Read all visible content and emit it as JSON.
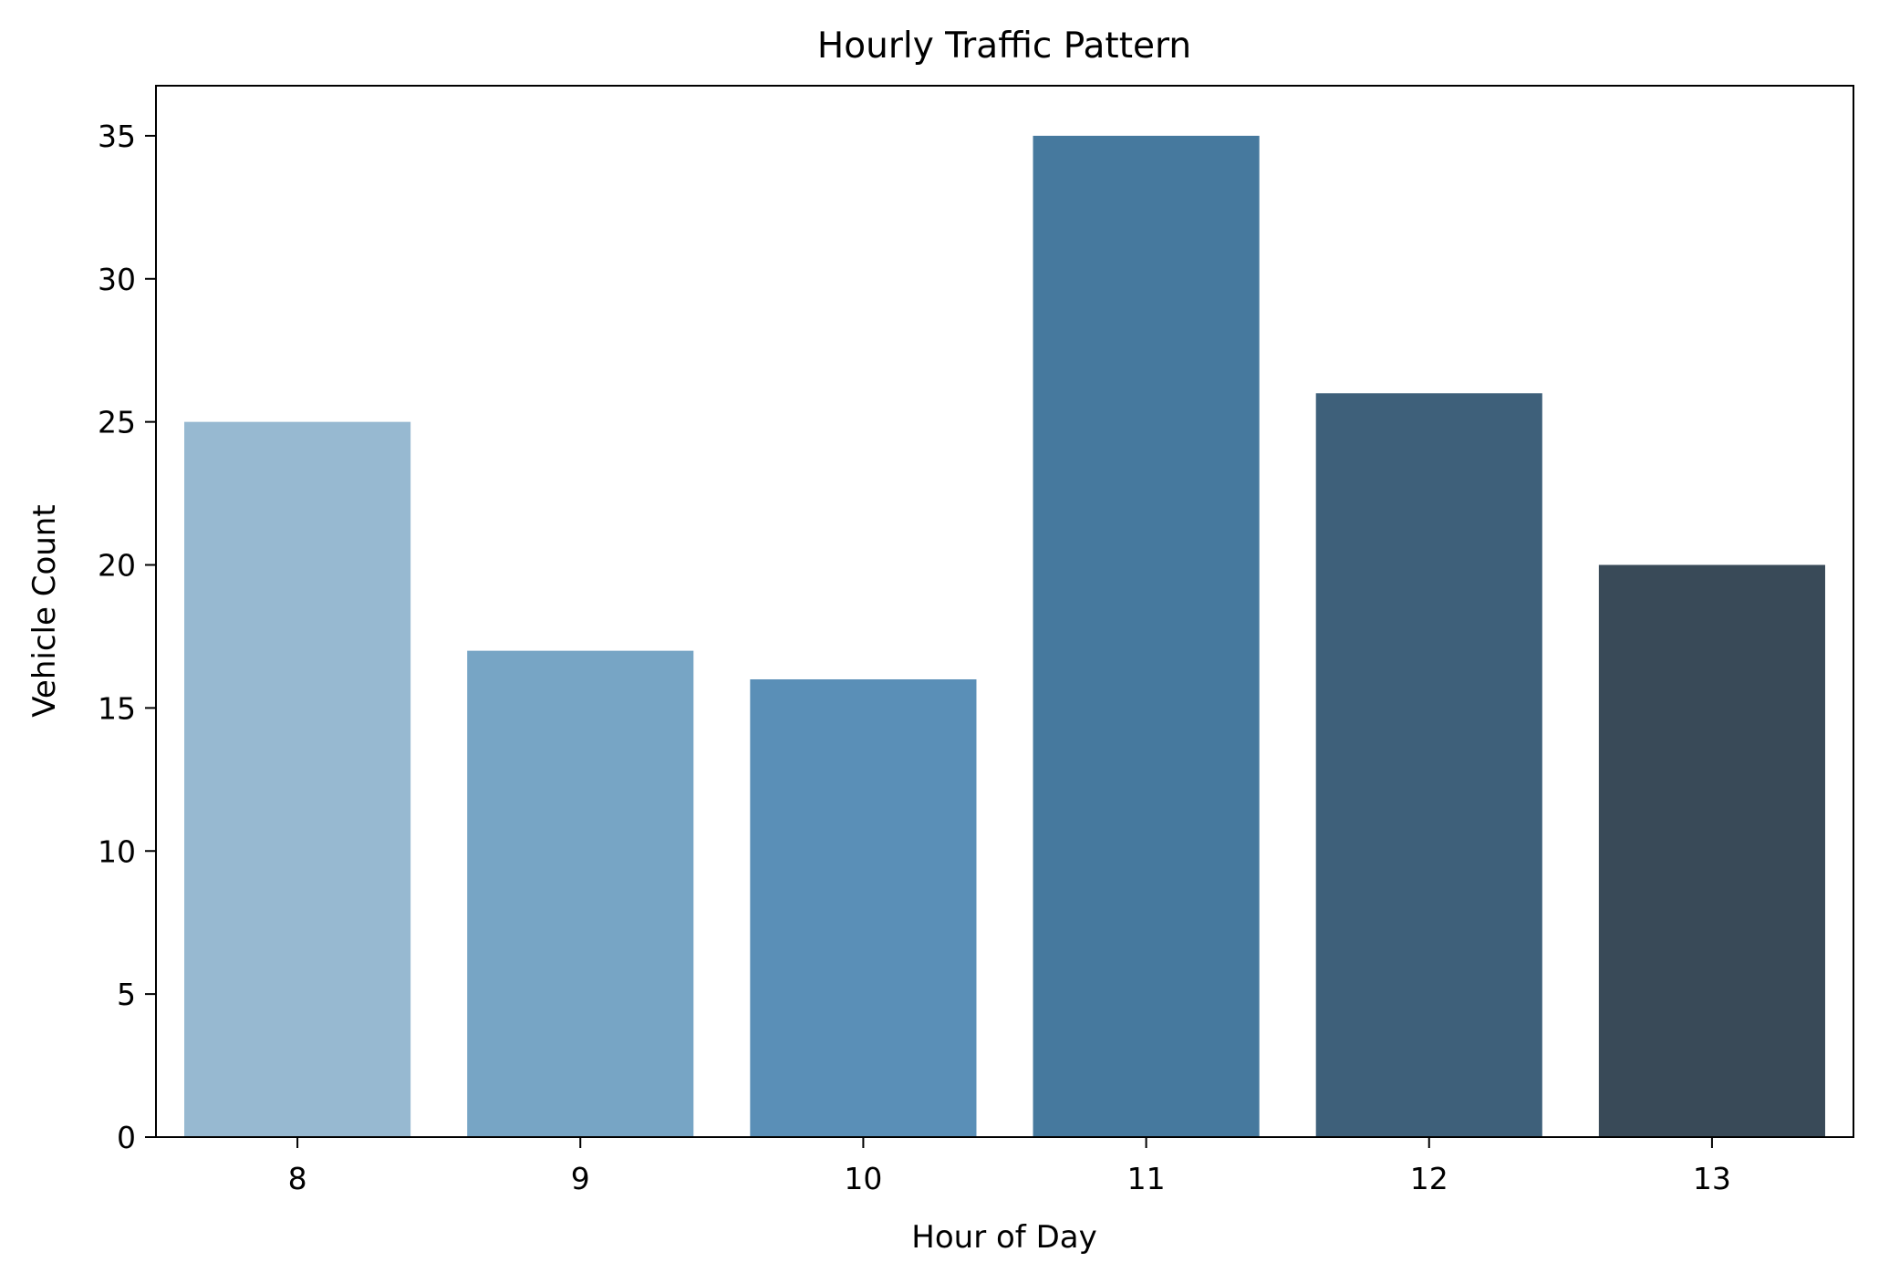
{
  "chart_data": {
    "type": "bar",
    "title": "Hourly Traffic Pattern",
    "xlabel": "Hour of Day",
    "ylabel": "Vehicle Count",
    "categories": [
      "8",
      "9",
      "10",
      "11",
      "12",
      "13"
    ],
    "values": [
      25,
      17,
      16,
      35,
      26,
      20
    ],
    "colors": [
      "#97b9d1",
      "#77a5c5",
      "#5a8fb7",
      "#46799e",
      "#3e607a",
      "#394a58"
    ],
    "yticks": [
      0,
      5,
      10,
      15,
      20,
      25,
      30,
      35
    ],
    "ylim": [
      0,
      36.75
    ],
    "grid": false,
    "legend": "none"
  }
}
